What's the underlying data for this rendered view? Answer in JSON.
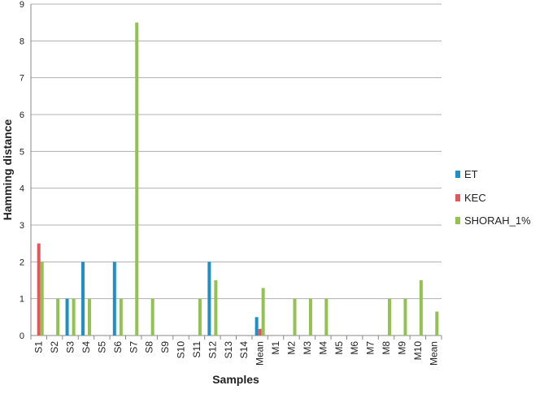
{
  "chart_data": {
    "type": "bar",
    "y_label": "Hamming distance",
    "x_label": "Samples",
    "categories": [
      "S1",
      "S2",
      "S3",
      "S4",
      "S5",
      "S6",
      "S7",
      "S8",
      "S9",
      "S10",
      "S11",
      "S12",
      "S13",
      "S14",
      "Mean",
      "M1",
      "M2",
      "M3",
      "M4",
      "M5",
      "M6",
      "M7",
      "M8",
      "M9",
      "M10",
      "Mean"
    ],
    "series": [
      {
        "name": "ET",
        "color": "#1f8fc6",
        "values": [
          0,
          0,
          1,
          2,
          0,
          2,
          0,
          0,
          0,
          0,
          0,
          2,
          0,
          0,
          0.5,
          0,
          0,
          0,
          0,
          0,
          0,
          0,
          0,
          0,
          0,
          0
        ]
      },
      {
        "name": "KEC",
        "color": "#e0585b",
        "values": [
          2.5,
          0,
          0,
          0,
          0,
          0,
          0,
          0,
          0,
          0,
          0,
          0,
          0,
          0,
          0.18,
          0,
          0,
          0,
          0,
          0,
          0,
          0,
          0,
          0,
          0,
          0
        ]
      },
      {
        "name": "SHORAH_1%",
        "color": "#93c152",
        "values": [
          2,
          1,
          1,
          1,
          0,
          1,
          8.5,
          1,
          0,
          0,
          1,
          1.5,
          0,
          0,
          1.29,
          0,
          1,
          1,
          1,
          0,
          0,
          0,
          1,
          1,
          1.5,
          0.65
        ]
      }
    ],
    "ylim": [
      0,
      9
    ],
    "yticks": [
      0,
      1,
      2,
      3,
      4,
      5,
      6,
      7,
      8,
      9
    ],
    "grid": true,
    "legend": "right"
  }
}
